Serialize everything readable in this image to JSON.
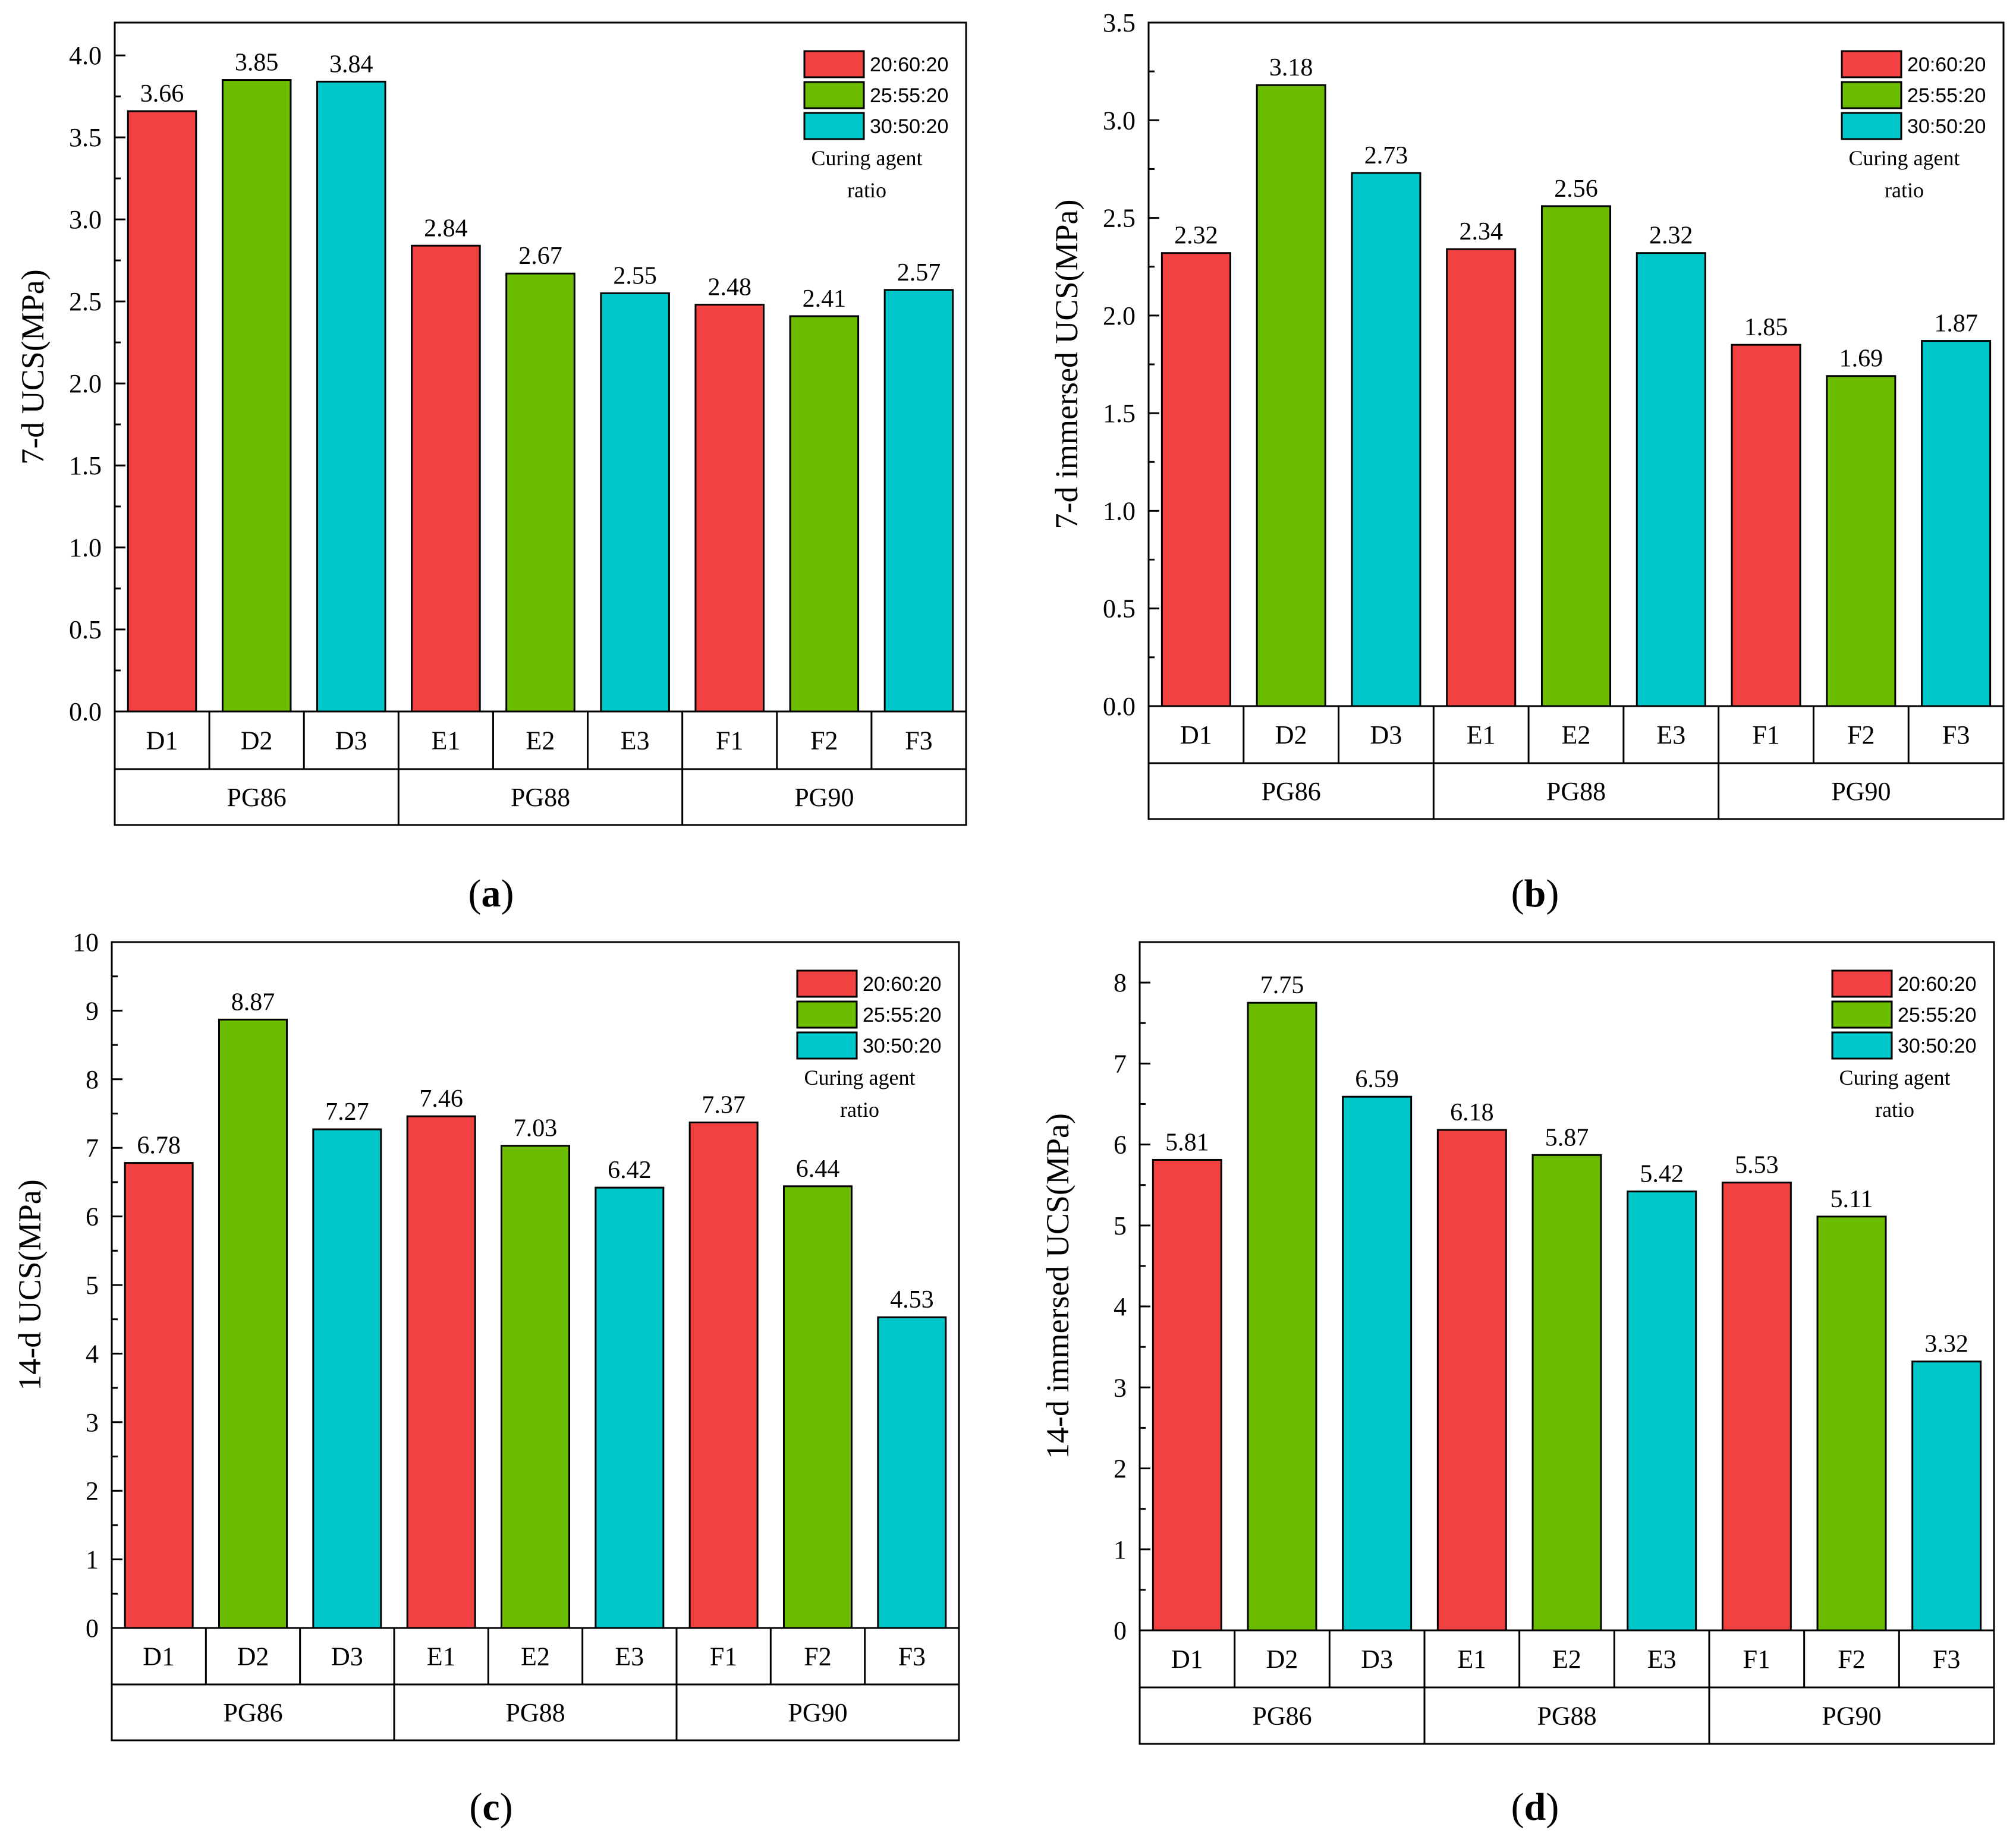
{
  "colors": {
    "series1": "#f24141",
    "series2": "#6cbd00",
    "series3": "#00c8ca"
  },
  "chart_data": [
    {
      "type": "bar",
      "panel": "a",
      "panel_label": "a",
      "ylabel": "7-d UCS(MPa)",
      "ylim": [
        0,
        4.2
      ],
      "yticks": [
        "0.0",
        "0.5",
        "1.0",
        "1.5",
        "2.0",
        "2.5",
        "3.0",
        "3.5",
        "4.0"
      ],
      "ytick_values": [
        0,
        0.5,
        1.0,
        1.5,
        2.0,
        2.5,
        3.0,
        3.5,
        4.0
      ],
      "groups": [
        "PG86",
        "PG88",
        "PG90"
      ],
      "categories": [
        "D1",
        "D2",
        "D3",
        "E1",
        "E2",
        "E3",
        "F1",
        "F2",
        "F3"
      ],
      "values": [
        3.66,
        3.85,
        3.84,
        2.84,
        2.67,
        2.55,
        2.48,
        2.41,
        2.57
      ],
      "value_labels": [
        "3.66",
        "3.85",
        "3.84",
        "2.84",
        "2.67",
        "2.55",
        "2.48",
        "2.41",
        "2.57"
      ],
      "legend": [
        "20:60:20",
        "25:55:20",
        "30:50:20"
      ],
      "legend_note": [
        "Curing agent",
        "ratio"
      ]
    },
    {
      "type": "bar",
      "panel": "b",
      "panel_label": "b",
      "ylabel": "7-d immersed UCS(MPa)",
      "ylim": [
        0,
        3.5
      ],
      "yticks": [
        "0.0",
        "0.5",
        "1.0",
        "1.5",
        "2.0",
        "2.5",
        "3.0",
        "3.5"
      ],
      "ytick_values": [
        0,
        0.5,
        1.0,
        1.5,
        2.0,
        2.5,
        3.0,
        3.5
      ],
      "groups": [
        "PG86",
        "PG88",
        "PG90"
      ],
      "categories": [
        "D1",
        "D2",
        "D3",
        "E1",
        "E2",
        "E3",
        "F1",
        "F2",
        "F3"
      ],
      "values": [
        2.32,
        3.18,
        2.73,
        2.34,
        2.56,
        2.32,
        1.85,
        1.69,
        1.87
      ],
      "value_labels": [
        "2.32",
        "3.18",
        "2.73",
        "2.34",
        "2.56",
        "2.32",
        "1.85",
        "1.69",
        "1.87"
      ],
      "legend": [
        "20:60:20",
        "25:55:20",
        "30:50:20"
      ],
      "legend_note": [
        "Curing agent",
        "ratio"
      ]
    },
    {
      "type": "bar",
      "panel": "c",
      "panel_label": "c",
      "ylabel": "14-d UCS(MPa)",
      "ylim": [
        0,
        10
      ],
      "yticks": [
        "0",
        "1",
        "2",
        "3",
        "4",
        "5",
        "6",
        "7",
        "8",
        "9",
        "10"
      ],
      "ytick_values": [
        0,
        1,
        2,
        3,
        4,
        5,
        6,
        7,
        8,
        9,
        10
      ],
      "groups": [
        "PG86",
        "PG88",
        "PG90"
      ],
      "categories": [
        "D1",
        "D2",
        "D3",
        "E1",
        "E2",
        "E3",
        "F1",
        "F2",
        "F3"
      ],
      "values": [
        6.78,
        8.87,
        7.27,
        7.46,
        7.03,
        6.42,
        7.37,
        6.44,
        4.53
      ],
      "value_labels": [
        "6.78",
        "8.87",
        "7.27",
        "7.46",
        "7.03",
        "6.42",
        "7.37",
        "6.44",
        "4.53"
      ],
      "legend": [
        "20:60:20",
        "25:55:20",
        "30:50:20"
      ],
      "legend_note": [
        "Curing agent",
        "ratio"
      ]
    },
    {
      "type": "bar",
      "panel": "d",
      "panel_label": "d",
      "ylabel": "14-d immersed UCS(MPa)",
      "ylim": [
        0,
        8.5
      ],
      "yticks": [
        "0",
        "1",
        "2",
        "3",
        "4",
        "5",
        "6",
        "7",
        "8"
      ],
      "ytick_values": [
        0,
        1,
        2,
        3,
        4,
        5,
        6,
        7,
        8
      ],
      "groups": [
        "PG86",
        "PG88",
        "PG90"
      ],
      "categories": [
        "D1",
        "D2",
        "D3",
        "E1",
        "E2",
        "E3",
        "F1",
        "F2",
        "F3"
      ],
      "values": [
        5.81,
        7.75,
        6.59,
        6.18,
        5.87,
        5.42,
        5.53,
        5.11,
        3.32
      ],
      "value_labels": [
        "5.81",
        "7.75",
        "6.59",
        "6.18",
        "5.87",
        "5.42",
        "5.53",
        "5.11",
        "3.32"
      ],
      "legend": [
        "20:60:20",
        "25:55:20",
        "30:50:20"
      ],
      "legend_note": [
        "Curing agent",
        "ratio"
      ]
    }
  ]
}
